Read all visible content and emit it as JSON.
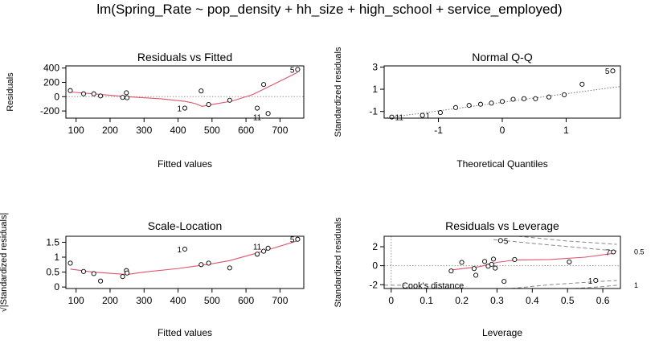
{
  "figure": {
    "main_title": "lm(Spring_Rate ~ pop_density + hh_size + high_school + service_employed)"
  },
  "chart_data": [
    {
      "type": "scatter",
      "title": "Residuals vs Fitted",
      "xlabel": "Fitted values",
      "ylabel": "Residuals",
      "xlim": [
        70,
        770
      ],
      "ylim": [
        -300,
        430
      ],
      "xticks": [
        100,
        200,
        300,
        400,
        500,
        600,
        700
      ],
      "yticks": [
        -200,
        0,
        200,
        400
      ],
      "hline": 0,
      "points": [
        {
          "x": 83,
          "y": 85
        },
        {
          "x": 122,
          "y": 40
        },
        {
          "x": 152,
          "y": 40
        },
        {
          "x": 172,
          "y": 10
        },
        {
          "x": 237,
          "y": -10
        },
        {
          "x": 248,
          "y": 55
        },
        {
          "x": 250,
          "y": -15
        },
        {
          "x": 420,
          "y": -160
        },
        {
          "x": 468,
          "y": 80
        },
        {
          "x": 490,
          "y": -110
        },
        {
          "x": 552,
          "y": -50
        },
        {
          "x": 633,
          "y": -160
        },
        {
          "x": 652,
          "y": 170
        },
        {
          "x": 665,
          "y": -235
        },
        {
          "x": 752,
          "y": 380
        }
      ],
      "smooth": [
        {
          "x": 83,
          "y": 65
        },
        {
          "x": 150,
          "y": 40
        },
        {
          "x": 250,
          "y": 0
        },
        {
          "x": 350,
          "y": -30
        },
        {
          "x": 420,
          "y": -65
        },
        {
          "x": 450,
          "y": -95
        },
        {
          "x": 470,
          "y": -135
        },
        {
          "x": 500,
          "y": -110
        },
        {
          "x": 560,
          "y": -60
        },
        {
          "x": 620,
          "y": 30
        },
        {
          "x": 680,
          "y": 170
        },
        {
          "x": 752,
          "y": 340
        }
      ],
      "labels": [
        {
          "text": "5",
          "x": 752,
          "y": 380,
          "side": "left"
        },
        {
          "text": "1",
          "x": 420,
          "y": -160,
          "side": "left"
        },
        {
          "text": "11",
          "x": 633,
          "y": -160,
          "side": "below"
        }
      ]
    },
    {
      "type": "scatter",
      "title": "Normal Q-Q",
      "xlabel": "Theoretical Quantiles",
      "ylabel": "Standardized residuals",
      "xlim": [
        -1.85,
        1.85
      ],
      "ylim": [
        -1.6,
        3.1
      ],
      "xticks": [
        -1,
        0,
        1
      ],
      "yticks": [
        -1,
        1,
        3
      ],
      "refline": [
        {
          "x": -1.85,
          "y": -1.6
        },
        {
          "x": 1.85,
          "y": 1.25
        }
      ],
      "points": [
        {
          "x": -1.73,
          "y": -1.5
        },
        {
          "x": -1.25,
          "y": -1.35
        },
        {
          "x": -0.97,
          "y": -1.1
        },
        {
          "x": -0.73,
          "y": -0.65
        },
        {
          "x": -0.52,
          "y": -0.45
        },
        {
          "x": -0.34,
          "y": -0.35
        },
        {
          "x": -0.17,
          "y": -0.25
        },
        {
          "x": 0.0,
          "y": -0.1
        },
        {
          "x": 0.17,
          "y": 0.1
        },
        {
          "x": 0.34,
          "y": 0.15
        },
        {
          "x": 0.52,
          "y": 0.15
        },
        {
          "x": 0.73,
          "y": 0.3
        },
        {
          "x": 0.97,
          "y": 0.5
        },
        {
          "x": 1.25,
          "y": 1.45
        },
        {
          "x": 1.73,
          "y": 2.65
        }
      ],
      "labels": [
        {
          "text": "5",
          "x": 1.73,
          "y": 2.65,
          "side": "left"
        },
        {
          "text": "1",
          "x": -1.25,
          "y": -1.35,
          "side": "right"
        },
        {
          "text": "11",
          "x": -1.73,
          "y": -1.5,
          "side": "right"
        }
      ]
    },
    {
      "type": "scatter",
      "title": "Scale-Location",
      "xlabel": "Fitted values",
      "ylabel": "√|Standardized residuals|",
      "xlim": [
        70,
        770
      ],
      "ylim": [
        -0.05,
        1.7
      ],
      "xticks": [
        100,
        200,
        300,
        400,
        500,
        600,
        700
      ],
      "yticks": [
        0.0,
        0.5,
        1.0,
        1.5
      ],
      "points": [
        {
          "x": 83,
          "y": 0.8
        },
        {
          "x": 122,
          "y": 0.52
        },
        {
          "x": 152,
          "y": 0.45
        },
        {
          "x": 172,
          "y": 0.2
        },
        {
          "x": 237,
          "y": 0.35
        },
        {
          "x": 248,
          "y": 0.55
        },
        {
          "x": 250,
          "y": 0.47
        },
        {
          "x": 420,
          "y": 1.27
        },
        {
          "x": 468,
          "y": 0.75
        },
        {
          "x": 490,
          "y": 0.8
        },
        {
          "x": 552,
          "y": 0.64
        },
        {
          "x": 633,
          "y": 1.1
        },
        {
          "x": 652,
          "y": 1.2
        },
        {
          "x": 665,
          "y": 1.3
        },
        {
          "x": 752,
          "y": 1.6
        }
      ],
      "smooth": [
        {
          "x": 83,
          "y": 0.6
        },
        {
          "x": 150,
          "y": 0.5
        },
        {
          "x": 200,
          "y": 0.46
        },
        {
          "x": 250,
          "y": 0.42
        },
        {
          "x": 300,
          "y": 0.5
        },
        {
          "x": 400,
          "y": 0.62
        },
        {
          "x": 450,
          "y": 0.7
        },
        {
          "x": 500,
          "y": 0.78
        },
        {
          "x": 550,
          "y": 0.88
        },
        {
          "x": 620,
          "y": 1.1
        },
        {
          "x": 680,
          "y": 1.3
        },
        {
          "x": 752,
          "y": 1.55
        }
      ],
      "labels": [
        {
          "text": "1",
          "x": 420,
          "y": 1.27,
          "side": "left"
        },
        {
          "text": "11",
          "x": 633,
          "y": 1.1,
          "side": "above"
        },
        {
          "text": "5",
          "x": 752,
          "y": 1.6,
          "side": "left"
        }
      ]
    },
    {
      "type": "scatter",
      "title": "Residuals vs Leverage",
      "xlabel": "Leverage",
      "ylabel": "Standardized residuals",
      "xlim": [
        -0.02,
        0.65
      ],
      "ylim": [
        -2.4,
        3.1
      ],
      "xticks": [
        0.0,
        0.1,
        0.2,
        0.3,
        0.4,
        0.5,
        0.6
      ],
      "yticks": [
        -2,
        0,
        2
      ],
      "hline": 0,
      "vline": 0,
      "points": [
        {
          "x": 0.17,
          "y": -0.55
        },
        {
          "x": 0.2,
          "y": 0.35
        },
        {
          "x": 0.235,
          "y": -0.3
        },
        {
          "x": 0.24,
          "y": -1.0
        },
        {
          "x": 0.265,
          "y": 0.45
        },
        {
          "x": 0.275,
          "y": -0.05
        },
        {
          "x": 0.285,
          "y": 0.15
        },
        {
          "x": 0.29,
          "y": 0.7
        },
        {
          "x": 0.295,
          "y": -0.25
        },
        {
          "x": 0.31,
          "y": 2.65
        },
        {
          "x": 0.32,
          "y": -1.65
        },
        {
          "x": 0.35,
          "y": 0.65
        },
        {
          "x": 0.505,
          "y": 0.4
        },
        {
          "x": 0.58,
          "y": -1.55
        },
        {
          "x": 0.63,
          "y": 1.45
        }
      ],
      "smooth": [
        {
          "x": 0.17,
          "y": -0.45
        },
        {
          "x": 0.25,
          "y": -0.1
        },
        {
          "x": 0.3,
          "y": 0.35
        },
        {
          "x": 0.35,
          "y": 0.6
        },
        {
          "x": 0.45,
          "y": 0.65
        },
        {
          "x": 0.55,
          "y": 0.9
        },
        {
          "x": 0.63,
          "y": 1.3
        }
      ],
      "labels": [
        {
          "text": "5",
          "x": 0.31,
          "y": 2.65,
          "side": "right"
        },
        {
          "text": "7",
          "x": 0.63,
          "y": 1.45,
          "side": "left"
        },
        {
          "text": "1",
          "x": 0.58,
          "y": -1.55,
          "side": "left"
        }
      ],
      "cooks_legend": "Cook's distance",
      "cooks_levels": [
        "0.5",
        "1"
      ]
    }
  ]
}
